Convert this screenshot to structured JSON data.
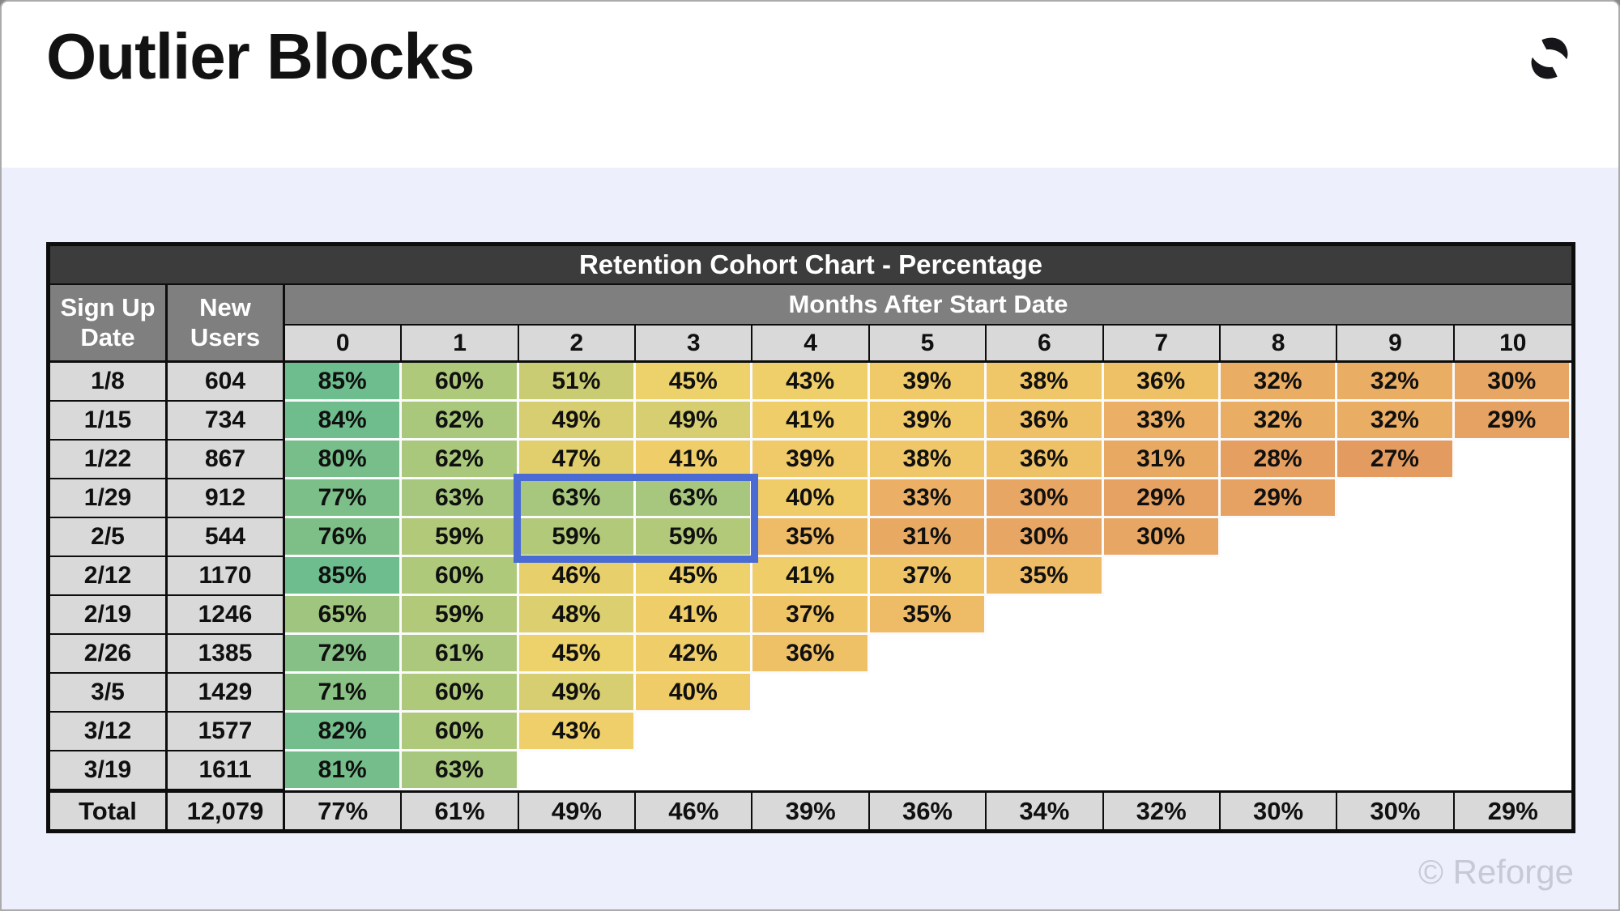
{
  "page": {
    "title": "Outlier Blocks",
    "watermark": "© Reforge",
    "logo_icon": "reforge-logo",
    "background_color": "#EDEFFC",
    "header_background": "#FFFFFF"
  },
  "chart_data": {
    "type": "heatmap",
    "title": "Retention Cohort Chart - Percentage",
    "col_group_label": "Months After Start Date",
    "row_header_labels": [
      "Sign Up Date",
      "New Users"
    ],
    "month_columns": [
      "0",
      "1",
      "2",
      "3",
      "4",
      "5",
      "6",
      "7",
      "8",
      "9",
      "10"
    ],
    "value_suffix": "%",
    "rows": [
      {
        "date": "1/8",
        "new_users": "604",
        "values": [
          85,
          60,
          51,
          45,
          43,
          39,
          38,
          36,
          32,
          32,
          30
        ]
      },
      {
        "date": "1/15",
        "new_users": "734",
        "values": [
          84,
          62,
          49,
          49,
          41,
          39,
          36,
          33,
          32,
          32,
          29
        ]
      },
      {
        "date": "1/22",
        "new_users": "867",
        "values": [
          80,
          62,
          47,
          41,
          39,
          38,
          36,
          31,
          28,
          27
        ]
      },
      {
        "date": "1/29",
        "new_users": "912",
        "values": [
          77,
          63,
          63,
          63,
          40,
          33,
          30,
          29,
          29
        ]
      },
      {
        "date": "2/5",
        "new_users": "544",
        "values": [
          76,
          59,
          59,
          59,
          35,
          31,
          30,
          30
        ]
      },
      {
        "date": "2/12",
        "new_users": "1170",
        "values": [
          85,
          60,
          46,
          45,
          41,
          37,
          35
        ]
      },
      {
        "date": "2/19",
        "new_users": "1246",
        "values": [
          65,
          59,
          48,
          41,
          37,
          35
        ]
      },
      {
        "date": "2/26",
        "new_users": "1385",
        "values": [
          72,
          61,
          45,
          42,
          36
        ]
      },
      {
        "date": "3/5",
        "new_users": "1429",
        "values": [
          71,
          60,
          49,
          40
        ]
      },
      {
        "date": "3/12",
        "new_users": "1577",
        "values": [
          82,
          60,
          43
        ]
      },
      {
        "date": "3/19",
        "new_users": "1611",
        "values": [
          81,
          63
        ]
      }
    ],
    "total_row": {
      "label": "Total",
      "new_users": "12,079",
      "values": [
        77,
        61,
        49,
        46,
        39,
        36,
        34,
        32,
        30,
        30,
        29
      ]
    },
    "highlight": {
      "row_dates": [
        "1/29",
        "2/5"
      ],
      "month_indexes": [
        2,
        3
      ],
      "color": "#4A6BD3"
    },
    "colors": {
      "title_bar_bg": "#3C3C3C",
      "group_bar_bg": "#7F7F7F",
      "header_cell_bg": "#D9D9D9",
      "grid_line": "#FBFBFD",
      "colormap_stops": [
        [
          27,
          "#E39B60"
        ],
        [
          33,
          "#EBB065"
        ],
        [
          36,
          "#EFC167"
        ],
        [
          40,
          "#F0CC68"
        ],
        [
          45,
          "#EDD16A"
        ],
        [
          51,
          "#CACC73"
        ],
        [
          59,
          "#B2C97A"
        ],
        [
          63,
          "#A6C77D"
        ],
        [
          72,
          "#86C086"
        ],
        [
          85,
          "#6DBD8E"
        ]
      ]
    },
    "layout": {
      "legend": false,
      "grid": true
    }
  }
}
